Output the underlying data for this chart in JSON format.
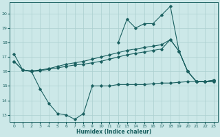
{
  "xlabel": "Humidex (Indice chaleur)",
  "background_color": "#cce8e8",
  "grid_color": "#aacfcf",
  "line_color": "#1a6060",
  "ylim": [
    12.5,
    20.8
  ],
  "xlim": [
    -0.5,
    23.5
  ],
  "yticks": [
    13,
    14,
    15,
    16,
    17,
    18,
    19,
    20
  ],
  "xticks": [
    0,
    1,
    2,
    3,
    4,
    5,
    6,
    7,
    8,
    9,
    10,
    11,
    12,
    13,
    14,
    15,
    16,
    17,
    18,
    19,
    20,
    21,
    22,
    23
  ],
  "curve_dip_x": [
    0,
    1,
    2,
    3,
    4,
    5,
    6,
    7,
    8,
    9,
    10,
    11,
    12,
    13,
    14,
    15,
    16,
    17,
    18,
    19,
    20,
    21,
    22,
    23
  ],
  "curve_dip_y": [
    17.2,
    16.1,
    16.0,
    14.8,
    13.8,
    13.1,
    13.0,
    12.7,
    13.1,
    15.0,
    15.0,
    15.0,
    15.1,
    15.1,
    15.1,
    15.1,
    15.15,
    15.2,
    15.2,
    15.25,
    15.3,
    15.3,
    15.3,
    15.3
  ],
  "curve_mid1_x": [
    0,
    1,
    2,
    3,
    4,
    5,
    6,
    7,
    8,
    9,
    10,
    11,
    12,
    13,
    14,
    15,
    16,
    17,
    18,
    19,
    20,
    21,
    22,
    23
  ],
  "curve_mid1_y": [
    16.7,
    16.1,
    16.0,
    16.05,
    16.15,
    16.25,
    16.35,
    16.45,
    16.5,
    16.6,
    16.7,
    16.85,
    17.0,
    17.15,
    17.25,
    17.35,
    17.45,
    17.55,
    18.2,
    17.4,
    16.0,
    15.3,
    15.3,
    15.3
  ],
  "curve_mid2_x": [
    0,
    1,
    2,
    3,
    4,
    5,
    6,
    7,
    8,
    9,
    10,
    11,
    12,
    13,
    14,
    15,
    16,
    17,
    18,
    19,
    20,
    21,
    22,
    23
  ],
  "curve_mid2_y": [
    16.7,
    16.1,
    16.05,
    16.1,
    16.2,
    16.35,
    16.5,
    16.6,
    16.7,
    16.85,
    17.0,
    17.15,
    17.3,
    17.45,
    17.55,
    17.65,
    17.75,
    17.85,
    18.2,
    17.4,
    16.0,
    15.3,
    15.3,
    15.4
  ],
  "curve_spike_x": [
    12,
    13,
    14,
    15,
    16,
    17,
    18,
    19,
    20,
    21,
    22,
    23
  ],
  "curve_spike_y": [
    18.0,
    19.6,
    19.0,
    19.3,
    19.3,
    19.9,
    20.5,
    17.4,
    16.0,
    15.3,
    15.3,
    15.4
  ]
}
